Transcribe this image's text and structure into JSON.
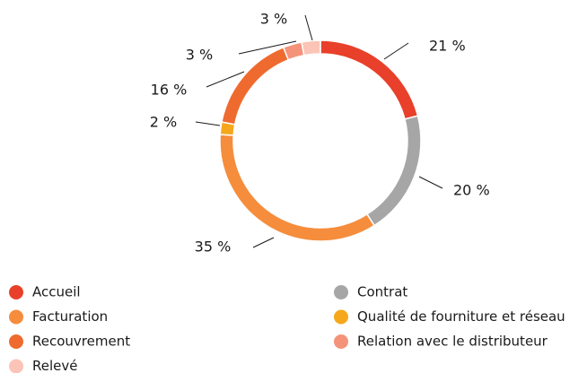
{
  "chart_data": {
    "type": "donut",
    "categories": [
      "Accueil",
      "Contrat",
      "Facturation",
      "Qualité de fourniture et réseau",
      "Recouvrement",
      "Relation avec le distributeur",
      "Relevé"
    ],
    "values": [
      21,
      20,
      35,
      2,
      16,
      3,
      3
    ],
    "value_labels": [
      "21 %",
      "20 %",
      "35 %",
      "2 %",
      "16 %",
      "3 %",
      "3 %"
    ],
    "colors": [
      "#e8402a",
      "#a6a6a6",
      "#f58d3d",
      "#f5a81c",
      "#ef6a2e",
      "#f4937a",
      "#fbc4b6"
    ],
    "legend": "bottom"
  }
}
